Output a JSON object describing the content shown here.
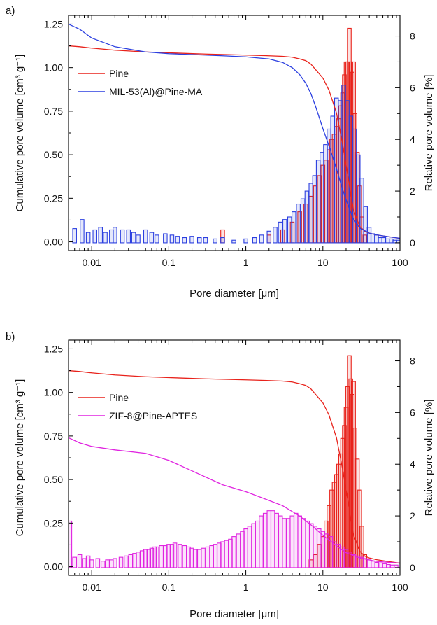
{
  "chart_data": [
    {
      "panel_label": "a)",
      "type": "line+histogram",
      "xlabel": "Pore diameter [μm]",
      "ylabel_left": "Cumulative pore volume [cm³ g⁻¹]",
      "ylabel_right": "Relative pore volume [%]",
      "xscale": "log",
      "xlim": [
        0.005,
        100
      ],
      "ylim_left": [
        -0.05,
        1.3
      ],
      "ylim_right": [
        -0.3,
        8.8
      ],
      "x_ticks": [
        "0.01",
        "0.1",
        "1",
        "10",
        "100"
      ],
      "y_ticks_left": [
        "0.00",
        "0.25",
        "0.50",
        "0.75",
        "1.00",
        "1.25"
      ],
      "y_ticks_right": [
        "0",
        "2",
        "4",
        "6",
        "8"
      ],
      "legend_position": "upper-left",
      "series": [
        {
          "name": "Pine",
          "color": "#e8221b",
          "cumulative": {
            "x": [
              0.005,
              0.007,
              0.01,
              0.02,
              0.05,
              0.1,
              0.3,
              1,
              2,
              3,
              4,
              5,
              6,
              7,
              8,
              10,
              12,
              15,
              18,
              22,
              25,
              30,
              35,
              40,
              50,
              70,
              100
            ],
            "y": [
              1.125,
              1.12,
              1.112,
              1.1,
              1.09,
              1.085,
              1.078,
              1.072,
              1.068,
              1.065,
              1.06,
              1.05,
              1.04,
              1.02,
              0.99,
              0.94,
              0.87,
              0.74,
              0.56,
              0.33,
              0.18,
              0.09,
              0.06,
              0.05,
              0.04,
              0.03,
              0.02
            ]
          },
          "relative": {
            "x": [
              0.5,
              2,
              3,
              4,
              5,
              6,
              7,
              8,
              9,
              10,
              11,
              12,
              13,
              14,
              15,
              16,
              17,
              18,
              19,
              20,
              21,
              22,
              23,
              24,
              25,
              26,
              28,
              30,
              32,
              35
            ],
            "y": [
              0.5,
              0.3,
              0.5,
              0.8,
              1.2,
              1.5,
              1.8,
              2.2,
              2.6,
              3.0,
              3.2,
              3.6,
              4.0,
              4.2,
              4.5,
              4.8,
              5.3,
              5.8,
              6.5,
              7.0,
              7.0,
              8.3,
              7.0,
              6.6,
              7.0,
              5.0,
              3.5,
              2.2,
              1.0,
              0.3
            ]
          }
        },
        {
          "name": "MIL-53(Al)@Pine-MA",
          "color": "#2b3fe0",
          "cumulative": {
            "x": [
              0.005,
              0.007,
              0.01,
              0.02,
              0.05,
              0.1,
              0.2,
              0.5,
              1,
              2,
              3,
              4,
              5,
              6,
              7,
              8,
              10,
              12,
              15,
              18,
              22,
              25,
              30,
              40,
              50,
              70,
              100
            ],
            "y": [
              1.25,
              1.22,
              1.17,
              1.12,
              1.09,
              1.08,
              1.075,
              1.068,
              1.062,
              1.05,
              1.03,
              1.0,
              0.96,
              0.91,
              0.85,
              0.78,
              0.65,
              0.55,
              0.42,
              0.3,
              0.19,
              0.13,
              0.08,
              0.05,
              0.04,
              0.03,
              0.02
            ]
          },
          "relative": {
            "x": [
              0.006,
              0.0075,
              0.009,
              0.011,
              0.013,
              0.015,
              0.018,
              0.02,
              0.025,
              0.03,
              0.035,
              0.04,
              0.05,
              0.06,
              0.07,
              0.09,
              0.11,
              0.13,
              0.16,
              0.2,
              0.25,
              0.3,
              0.4,
              0.5,
              0.7,
              1.0,
              1.3,
              1.6,
              2.0,
              2.4,
              2.8,
              3.2,
              3.7,
              4.2,
              4.8,
              5.5,
              6.2,
              7.0,
              7.8,
              8.7,
              9.7,
              10.8,
              12.0,
              13.4,
              15.0,
              16.7,
              18.6,
              20.7,
              23.1,
              25.7,
              28.7,
              32.0,
              35.7,
              39.8,
              44.4,
              49.6,
              55.3,
              61.7,
              68.8,
              76.8,
              85.7,
              95.6
            ],
            "y": [
              0.55,
              0.9,
              0.4,
              0.5,
              0.6,
              0.4,
              0.5,
              0.6,
              0.5,
              0.5,
              0.4,
              0.3,
              0.5,
              0.4,
              0.3,
              0.35,
              0.3,
              0.25,
              0.2,
              0.25,
              0.2,
              0.2,
              0.15,
              0.2,
              0.1,
              0.15,
              0.2,
              0.3,
              0.45,
              0.6,
              0.8,
              0.9,
              1.0,
              1.2,
              1.5,
              1.7,
              2.0,
              2.3,
              2.6,
              3.2,
              3.5,
              3.8,
              4.4,
              4.9,
              5.6,
              5.5,
              6.1,
              5.5,
              4.9,
              4.4,
              3.4,
              2.5,
              1.4,
              0.6,
              0.35,
              0.3,
              0.2,
              0.2,
              0.15,
              0.15,
              0.1,
              0.1
            ]
          }
        }
      ]
    },
    {
      "panel_label": "b)",
      "type": "line+histogram",
      "xlabel": "Pore diameter [μm]",
      "ylabel_left": "Cumulative pore volume [cm³ g⁻¹]",
      "ylabel_right": "Relative pore volume [%]",
      "xscale": "log",
      "xlim": [
        0.005,
        100
      ],
      "ylim_left": [
        -0.05,
        1.3
      ],
      "ylim_right": [
        -0.3,
        8.8
      ],
      "x_ticks": [
        "0.01",
        "0.1",
        "1",
        "10",
        "100"
      ],
      "y_ticks_left": [
        "0.00",
        "0.25",
        "0.50",
        "0.75",
        "1.00",
        "1.25"
      ],
      "y_ticks_right": [
        "0",
        "2",
        "4",
        "6",
        "8"
      ],
      "legend_position": "upper-left",
      "series": [
        {
          "name": "Pine",
          "color": "#e8221b",
          "cumulative": {
            "x": [
              0.005,
              0.007,
              0.01,
              0.02,
              0.05,
              0.1,
              0.3,
              1,
              2,
              3,
              4,
              5,
              6,
              7,
              8,
              10,
              12,
              15,
              18,
              22,
              25,
              30,
              35,
              40,
              50,
              70,
              100
            ],
            "y": [
              1.125,
              1.12,
              1.112,
              1.1,
              1.09,
              1.085,
              1.078,
              1.072,
              1.068,
              1.065,
              1.06,
              1.05,
              1.04,
              1.02,
              0.99,
              0.94,
              0.87,
              0.74,
              0.56,
              0.33,
              0.18,
              0.09,
              0.06,
              0.05,
              0.04,
              0.03,
              0.02
            ]
          },
          "relative": {
            "x": [
              7,
              8,
              9,
              10,
              11,
              12,
              13,
              14,
              15,
              16,
              17,
              18,
              19,
              20,
              21,
              22,
              23,
              24,
              25,
              26,
              28,
              30,
              32,
              35
            ],
            "y": [
              0.3,
              0.5,
              0.9,
              1.2,
              1.8,
              2.4,
              3.0,
              3.3,
              3.6,
              4.0,
              4.4,
              5.0,
              5.5,
              6.2,
              7.0,
              8.2,
              7.3,
              6.7,
              7.2,
              5.4,
              4.2,
              3.0,
              1.6,
              0.5
            ]
          }
        },
        {
          "name": "ZIF-8@Pine-APTES",
          "color": "#e024e0",
          "cumulative": {
            "x": [
              0.005,
              0.007,
              0.01,
              0.02,
              0.05,
              0.1,
              0.2,
              0.5,
              1,
              2,
              3,
              5,
              7,
              10,
              15,
              20,
              30,
              50,
              100
            ],
            "y": [
              0.74,
              0.71,
              0.69,
              0.67,
              0.65,
              0.61,
              0.55,
              0.47,
              0.43,
              0.38,
              0.35,
              0.29,
              0.24,
              0.18,
              0.12,
              0.08,
              0.05,
              0.03,
              0.02
            ]
          },
          "relative": {
            "x": [
              0.0052,
              0.006,
              0.007,
              0.008,
              0.009,
              0.01,
              0.012,
              0.014,
              0.016,
              0.018,
              0.02,
              0.024,
              0.028,
              0.032,
              0.036,
              0.04,
              0.045,
              0.05,
              0.055,
              0.06,
              0.065,
              0.07,
              0.08,
              0.09,
              0.1,
              0.11,
              0.12,
              0.14,
              0.16,
              0.18,
              0.2,
              0.22,
              0.25,
              0.28,
              0.32,
              0.36,
              0.4,
              0.45,
              0.5,
              0.56,
              0.63,
              0.7,
              0.8,
              0.9,
              1.0,
              1.12,
              1.26,
              1.41,
              1.58,
              1.78,
              2.0,
              2.24,
              2.51,
              2.82,
              3.16,
              3.55,
              3.98,
              4.47,
              5.01,
              5.62,
              6.31,
              7.08,
              7.94,
              8.91,
              10.0,
              11.2,
              12.6,
              14.1,
              15.8,
              17.8,
              20.0,
              22.4,
              25.1,
              28.2,
              31.6,
              35.5,
              39.8,
              44.7,
              50.1,
              56.2,
              63.1,
              70.8,
              79.4,
              89.1
            ],
            "y": [
              1.8,
              0.4,
              0.5,
              0.35,
              0.45,
              0.3,
              0.35,
              0.25,
              0.3,
              0.3,
              0.35,
              0.4,
              0.45,
              0.5,
              0.55,
              0.6,
              0.65,
              0.7,
              0.7,
              0.75,
              0.8,
              0.8,
              0.85,
              0.85,
              0.9,
              0.9,
              0.95,
              0.9,
              0.85,
              0.8,
              0.75,
              0.7,
              0.7,
              0.75,
              0.8,
              0.85,
              0.9,
              0.95,
              1.0,
              1.05,
              1.1,
              1.2,
              1.3,
              1.4,
              1.5,
              1.6,
              1.7,
              1.8,
              2.0,
              2.1,
              2.2,
              2.2,
              2.1,
              2.0,
              1.9,
              1.9,
              2.0,
              2.1,
              2.0,
              1.9,
              1.8,
              1.7,
              1.6,
              1.5,
              1.4,
              1.3,
              1.2,
              1.0,
              0.9,
              0.8,
              0.7,
              0.6,
              0.5,
              0.45,
              0.4,
              0.35,
              0.3,
              0.25,
              0.2,
              0.18,
              0.15,
              0.12,
              0.1,
              0.1
            ]
          }
        }
      ]
    }
  ]
}
